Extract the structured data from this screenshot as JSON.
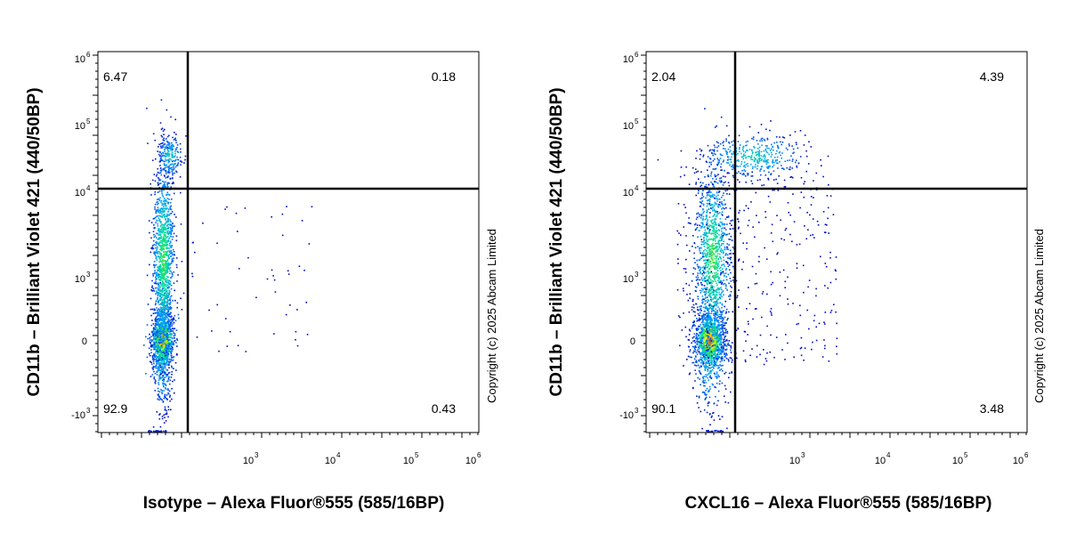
{
  "chart_data": [
    {
      "type": "scatter",
      "xlabel": "Isotype – Alexa Fluor®555 (585/16BP)",
      "ylabel": "CD11b – Brilliant Violet 421  (440/50BP)",
      "copyright": "Copyright (c) 2025 Abcam Limited",
      "x_scale": "biexponential",
      "y_scale": "biexponential",
      "x_ticks": [
        {
          "label": "10",
          "exp": "3"
        },
        {
          "label": "10",
          "exp": "4"
        },
        {
          "label": "10",
          "exp": "5"
        },
        {
          "label": "10",
          "exp": "6"
        }
      ],
      "y_ticks": [
        {
          "label": "-10",
          "exp": "3"
        },
        {
          "label": "0",
          "exp": ""
        },
        {
          "label": "10",
          "exp": "3"
        },
        {
          "label": "10",
          "exp": "4"
        },
        {
          "label": "10",
          "exp": "5"
        },
        {
          "label": "10",
          "exp": "6"
        }
      ],
      "quadrants": {
        "upper_left": "6.47",
        "upper_right": "0.18",
        "lower_left": "92.9",
        "lower_right": "0.43"
      }
    },
    {
      "type": "scatter",
      "xlabel": "CXCL16 – Alexa Fluor®555 (585/16BP)",
      "ylabel": "CD11b – Brilliant Violet 421  (440/50BP)",
      "copyright": "Copyright (c) 2025 Abcam Limited",
      "x_scale": "biexponential",
      "y_scale": "biexponential",
      "x_ticks": [
        {
          "label": "10",
          "exp": "3"
        },
        {
          "label": "10",
          "exp": "4"
        },
        {
          "label": "10",
          "exp": "5"
        },
        {
          "label": "10",
          "exp": "6"
        }
      ],
      "y_ticks": [
        {
          "label": "-10",
          "exp": "3"
        },
        {
          "label": "0",
          "exp": ""
        },
        {
          "label": "10",
          "exp": "3"
        },
        {
          "label": "10",
          "exp": "4"
        },
        {
          "label": "10",
          "exp": "5"
        },
        {
          "label": "10",
          "exp": "6"
        }
      ],
      "quadrants": {
        "upper_left": "2.04",
        "upper_right": "4.39",
        "lower_left": "90.1",
        "lower_right": "3.48"
      }
    }
  ]
}
